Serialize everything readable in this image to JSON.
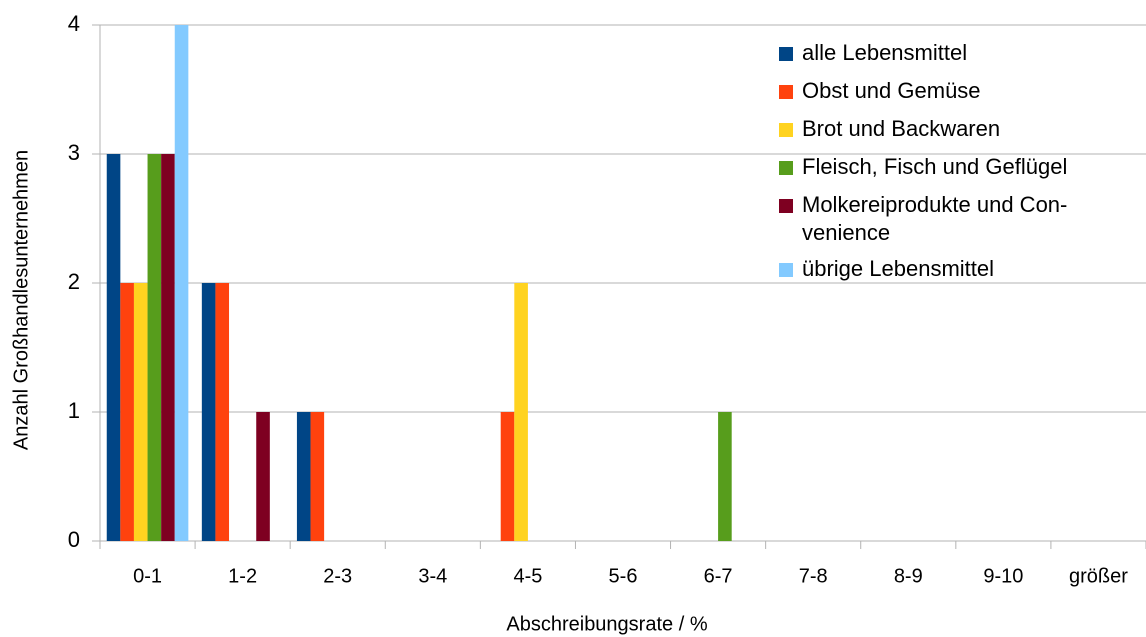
{
  "chart_data": {
    "type": "bar",
    "x_label": "Abschreibungsrate / %",
    "y_label": "Anzahl Großhandlesunternehmen",
    "categories": [
      "0-1",
      "1-2",
      "2-3",
      "3-4",
      "4-5",
      "5-6",
      "6-7",
      "7-8",
      "8-9",
      "9-10",
      "größer"
    ],
    "series": [
      {
        "name": "alle Lebensmittel",
        "color": "#004586",
        "values": [
          3,
          2,
          1,
          0,
          0,
          0,
          0,
          0,
          0,
          0,
          0
        ]
      },
      {
        "name": "Obst und Gemüse",
        "color": "#ff420e",
        "values": [
          2,
          2,
          1,
          0,
          1,
          0,
          0,
          0,
          0,
          0,
          0
        ]
      },
      {
        "name": "Brot und Backwaren",
        "color": "#ffd320",
        "values": [
          2,
          0,
          0,
          0,
          2,
          0,
          0,
          0,
          0,
          0,
          0
        ]
      },
      {
        "name": "Fleisch, Fisch und Geflügel",
        "color": "#579d1c",
        "values": [
          3,
          0,
          0,
          0,
          0,
          0,
          1,
          0,
          0,
          0,
          0
        ]
      },
      {
        "name": "Molkereiprodukte und Con-\nvenience",
        "color": "#7e0021",
        "values": [
          3,
          1,
          0,
          0,
          0,
          0,
          0,
          0,
          0,
          0,
          0
        ]
      },
      {
        "name": "übrige Lebensmittel",
        "color": "#83caff",
        "values": [
          4,
          0,
          0,
          0,
          0,
          0,
          0,
          0,
          0,
          0,
          0
        ]
      }
    ],
    "ylim": [
      0,
      4
    ],
    "yticks": [
      0,
      1,
      2,
      3,
      4
    ],
    "grid": true,
    "legend": "upper right"
  }
}
